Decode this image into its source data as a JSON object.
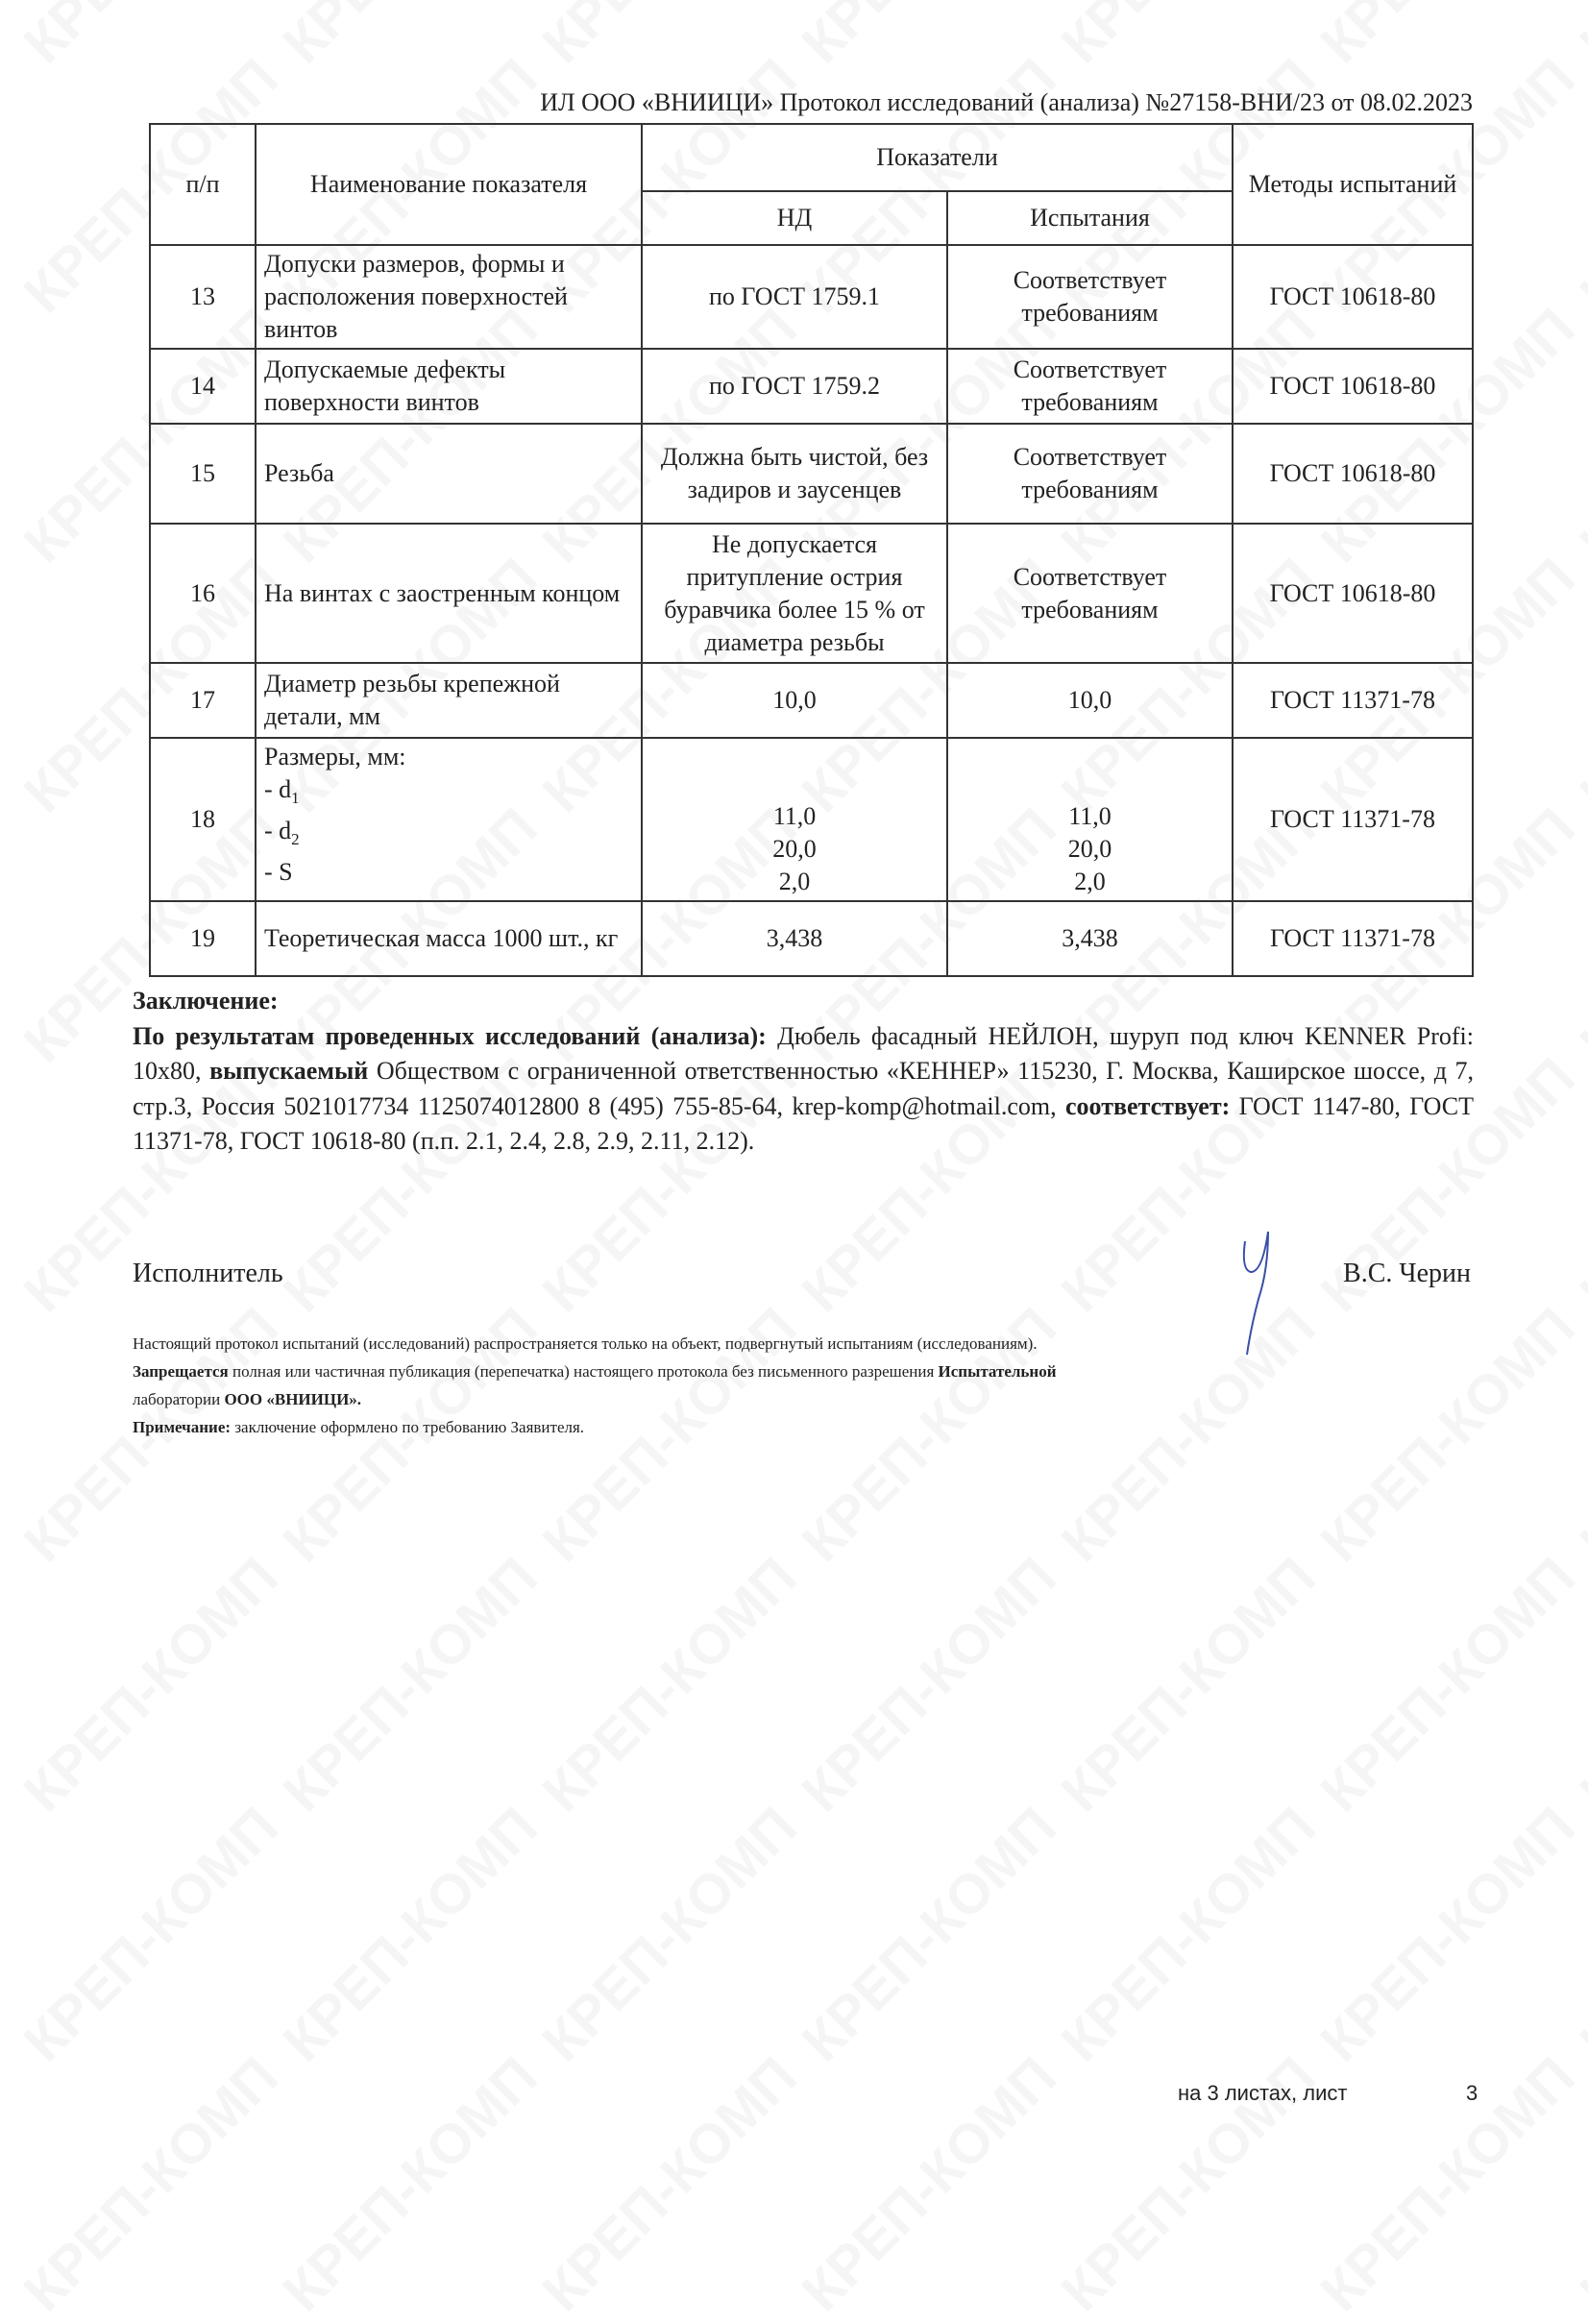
{
  "watermark": "КРЕП-КОМП",
  "header": "ИЛ ООО «ВНИИЦИ»  Протокол исследований (анализа)  №27158-ВНИ/23 от  08.02.2023",
  "table": {
    "col_num": "п/п",
    "col_name": "Наименование показателя",
    "col_indicators": "Показатели",
    "col_nd": "НД",
    "col_test": "Испытания",
    "col_methods": "Методы испытаний",
    "rows": [
      {
        "num": "13",
        "name": "Допуски размеров, формы и расположения поверхностей винтов",
        "nd": "по ГОСТ 1759.1",
        "test": "Соответствует требованиям",
        "method": "ГОСТ 10618-80"
      },
      {
        "num": "14",
        "name": "Допускаемые дефекты поверхности винтов",
        "nd": "по ГОСТ 1759.2",
        "test": "Соответствует требованиям",
        "method": "ГОСТ 10618-80"
      },
      {
        "num": "15",
        "name": "Резьба",
        "nd": "Должна быть чистой, без задиров и заусенцев",
        "test": "Соответствует требованиям",
        "method": "ГОСТ 10618-80"
      },
      {
        "num": "16",
        "name": "На винтах с заостренным концом",
        "nd": "Не допускается притупление острия буравчика более 15 % от диаметра резьбы",
        "test": "Соответствует требованиям",
        "method": "ГОСТ 10618-80"
      },
      {
        "num": "17",
        "name": "Диаметр резьбы крепежной детали, мм",
        "nd": "10,0",
        "test": "10,0",
        "method": "ГОСТ 11371-78"
      },
      {
        "num": "19",
        "name": "Теоретическая масса 1000 шт., кг",
        "nd": "3,438",
        "test": "3,438",
        "method": "ГОСТ 11371-78"
      }
    ],
    "row18": {
      "num": "18",
      "title": "Размеры, мм:",
      "items": [
        "- d",
        "- d",
        "- S"
      ],
      "subs": [
        "1",
        "2",
        ""
      ],
      "nd": [
        "11,0",
        "20,0",
        "2,0"
      ],
      "test": [
        "11,0",
        "20,0",
        "2,0"
      ],
      "method": "ГОСТ 11371-78"
    }
  },
  "conclusion": {
    "title": "Заключение:",
    "lead_bold": "По результатам проведенных исследований (анализа):",
    "part1": " Дюбель фасадный НЕЙЛОН, шуруп под ключ KENNER Profi: 10х80, ",
    "bold2": "выпускаемый",
    "part2": " Обществом с ограниченной ответственностью «КЕННЕР»  115230, Г. Москва, Каширское шоссе, д 7, стр.3, Россия 5021017734 1125074012800 8 (495) 755-85-64, krep-komp@hotmail.com, ",
    "bold3": "соответствует:",
    "part3": " ГОСТ 1147-80, ГОСТ 11371-78, ГОСТ 10618-80 (п.п. 2.1, 2.4, 2.8, 2.9, 2.11, 2.12)."
  },
  "signature": {
    "role": "Исполнитель",
    "name": "В.С. Черин",
    "ink_color": "#3a4fa8"
  },
  "footnotes": {
    "line1": "Настоящий протокол испытаний (исследований) распространяется только на объект, подвергнутый испытаниям (исследованиям).",
    "line2_bold": "Запрещается",
    "line2": " полная или частичная публикация (перепечатка) настоящего протокола без письменного разрешения ",
    "line2_bold2": "Испытательной",
    "line3": "лаборатории  ",
    "line3_bold": "ООО «ВНИИЦИ».",
    "line4_bold": "Примечание:",
    "line4": " заключение оформлено по требованию Заявителя."
  },
  "page": {
    "label": "на 3  листах, лист",
    "number": "3"
  }
}
